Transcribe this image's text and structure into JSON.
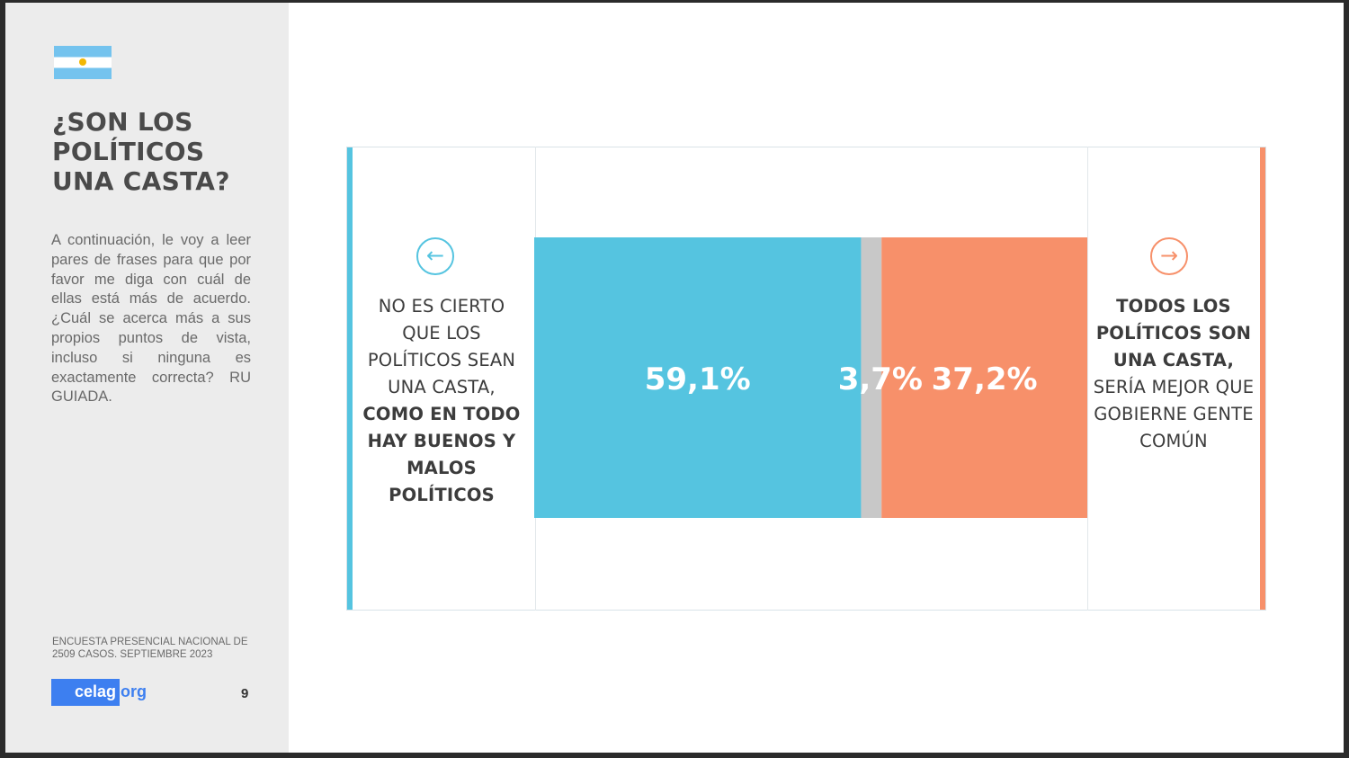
{
  "sidebar": {
    "title_lines": [
      "¿SON LOS",
      "POLÍTICOS",
      "UNA CASTA?"
    ],
    "description": "A continuación, le voy a leer pares de frases para que por favor me diga con cuál de ellas está más de acuerdo. ¿Cuál se acerca más a sus propios puntos de vista, incluso si ninguna es exactamente correcta? RU GUIADA.",
    "source": "ENCUESTA PRESENCIAL NACIONAL DE 2509 CASOS. SEPTIEMBRE 2023",
    "logo_main": "celag",
    "logo_suffix": ".org",
    "page_number": "9"
  },
  "left_statement": {
    "normal": "NO ES CIERTO QUE LOS POLÍTICOS SEAN UNA CASTA,",
    "bold": "COMO EN TODO HAY BUENOS Y MALOS POLÍTICOS"
  },
  "right_statement": {
    "bold": "TODOS LOS POLÍTICOS SON UNA CASTA,",
    "normal": "SERÍA MEJOR QUE GOBIERNE GENTE COMÚN"
  },
  "icons": {
    "left": "arrow-left-circle-icon",
    "right": "arrow-right-circle-icon"
  },
  "colors": {
    "left": "#55c4e0",
    "middle": "#c8c8c8",
    "right": "#f7906a",
    "label": "#ffffff"
  },
  "chart_data": {
    "type": "bar",
    "orientation": "horizontal-stacked",
    "series": [
      {
        "value": 59.1,
        "label": "59,1%",
        "color": "#55c4e0"
      },
      {
        "value": 3.7,
        "label": "3,7%",
        "color": "#c8c8c8"
      },
      {
        "value": 37.2,
        "label": "37,2%",
        "color": "#f7906a"
      }
    ],
    "xlim": [
      0,
      100
    ]
  }
}
